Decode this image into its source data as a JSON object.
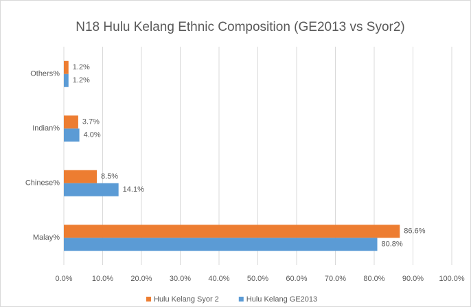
{
  "chart_data": {
    "type": "hbar",
    "title": "N18 Hulu Kelang Ethnic Composition (GE2013 vs Syor2)",
    "categories": [
      "Others%",
      "Indian%",
      "Chinese%",
      "Malay%"
    ],
    "series": [
      {
        "name": "Hulu Kelang Syor 2",
        "color": "#ed7d31",
        "values": [
          1.2,
          3.7,
          8.5,
          86.6
        ],
        "value_labels": [
          "1.2%",
          "3.7%",
          "8.5%",
          "86.6%"
        ]
      },
      {
        "name": "Hulu Kelang GE2013",
        "color": "#5b9bd5",
        "values": [
          1.2,
          4.0,
          14.1,
          80.8
        ],
        "value_labels": [
          "1.2%",
          "4.0%",
          "14.1%",
          "80.8%"
        ]
      }
    ],
    "xlim": [
      0,
      100
    ],
    "xticks": [
      {
        "value": 0,
        "label": "0.0%"
      },
      {
        "value": 10,
        "label": "10.0%"
      },
      {
        "value": 20,
        "label": "20.0%"
      },
      {
        "value": 30,
        "label": "30.0%"
      },
      {
        "value": 40,
        "label": "40.0%"
      },
      {
        "value": 50,
        "label": "50.0%"
      },
      {
        "value": 60,
        "label": "60.0%"
      },
      {
        "value": 70,
        "label": "70.0%"
      },
      {
        "value": 80,
        "label": "80.0%"
      },
      {
        "value": 90,
        "label": "90.0%"
      },
      {
        "value": 100,
        "label": "100.0%"
      }
    ],
    "grid": true,
    "legend": "bottom"
  }
}
